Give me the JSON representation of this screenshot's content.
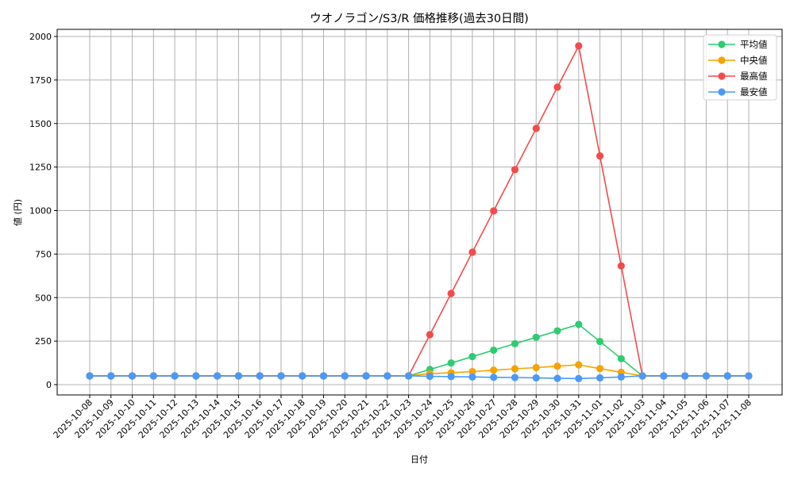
{
  "chart_data": {
    "type": "line",
    "title": "ウオノラゴン/S3/R 価格推移(過去30日間)",
    "xlabel": "日付",
    "ylabel": "値 (円)",
    "ylim": [
      -55,
      2045
    ],
    "yticks": [
      0,
      250,
      500,
      750,
      1000,
      1250,
      1500,
      1750,
      2000
    ],
    "grid": true,
    "legend_position": "upper right",
    "categories": [
      "2025-10-08",
      "2025-10-09",
      "2025-10-10",
      "2025-10-11",
      "2025-10-12",
      "2025-10-13",
      "2025-10-14",
      "2025-10-15",
      "2025-10-16",
      "2025-10-17",
      "2025-10-18",
      "2025-10-19",
      "2025-10-20",
      "2025-10-21",
      "2025-10-22",
      "2025-10-23",
      "2025-10-24",
      "2025-10-25",
      "2025-10-26",
      "2025-10-27",
      "2025-10-28",
      "2025-10-29",
      "2025-10-30",
      "2025-10-31",
      "2025-11-01",
      "2025-11-02",
      "2025-11-03",
      "2025-11-04",
      "2025-11-05",
      "2025-11-06",
      "2025-11-07",
      "2025-11-08"
    ],
    "series": [
      {
        "name": "平均値",
        "color": "#2ecc71",
        "values": [
          50,
          50,
          50,
          50,
          50,
          50,
          50,
          50,
          50,
          50,
          50,
          50,
          50,
          50,
          50,
          50,
          87,
          124,
          161,
          198,
          235,
          272,
          309,
          346,
          248,
          149,
          50,
          50,
          50,
          50,
          50,
          50
        ]
      },
      {
        "name": "中央値",
        "color": "#f5a300",
        "values": [
          50,
          50,
          50,
          50,
          50,
          50,
          50,
          50,
          50,
          50,
          50,
          50,
          50,
          50,
          50,
          50,
          63,
          68,
          75,
          83,
          91,
          98,
          106,
          114,
          92,
          71,
          50,
          50,
          50,
          50,
          50,
          50
        ]
      },
      {
        "name": "最高値",
        "color": "#f24b4b",
        "values": [
          50,
          50,
          50,
          50,
          50,
          50,
          50,
          50,
          50,
          50,
          50,
          50,
          50,
          50,
          50,
          50,
          287,
          524,
          761,
          998,
          1235,
          1472,
          1709,
          1946,
          1314,
          682,
          50,
          50,
          50,
          50,
          50,
          50
        ]
      },
      {
        "name": "最安値",
        "color": "#4a9af5",
        "values": [
          50,
          50,
          50,
          50,
          50,
          50,
          50,
          50,
          50,
          50,
          50,
          50,
          50,
          50,
          50,
          50,
          48,
          46,
          44,
          42,
          41,
          39,
          36,
          35,
          39,
          44,
          50,
          50,
          50,
          50,
          50,
          50
        ]
      }
    ]
  }
}
